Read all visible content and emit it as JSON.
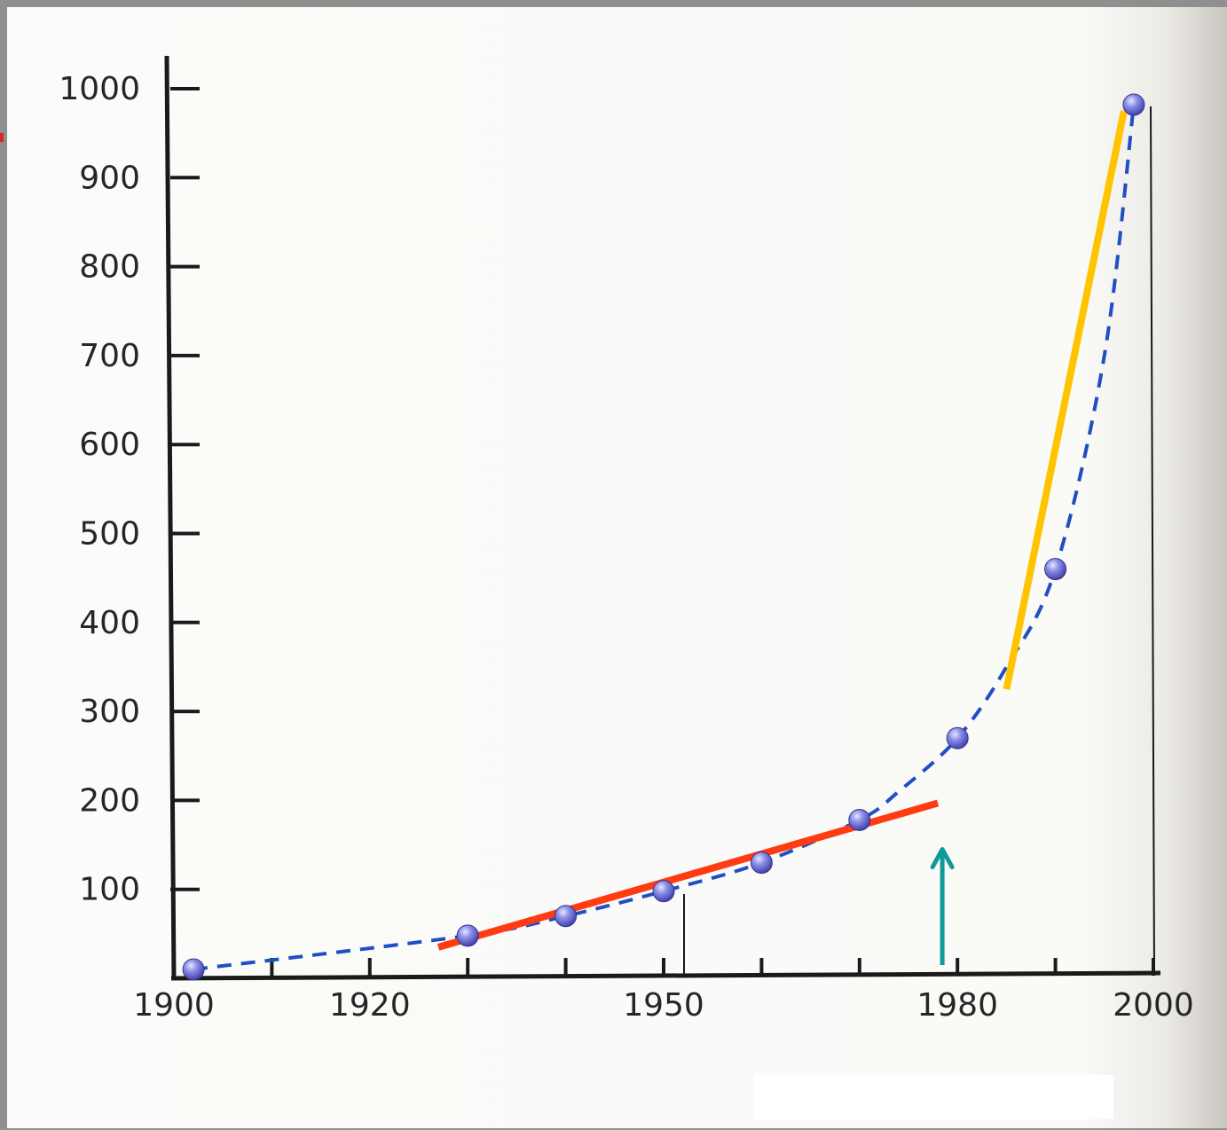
{
  "chart_data": {
    "type": "scatter",
    "title": "",
    "xlabel": "",
    "ylabel": "",
    "xlim": [
      1900,
      2000
    ],
    "ylim": [
      0,
      1000
    ],
    "x_ticks": [
      1900,
      1910,
      1920,
      1930,
      1940,
      1950,
      1960,
      1970,
      1980,
      1990,
      2000
    ],
    "x_tick_labels": [
      "1900",
      "1920",
      "1950",
      "1980",
      "2000"
    ],
    "x_tick_label_values": [
      1900,
      1920,
      1950,
      1980,
      2000
    ],
    "y_ticks": [
      100,
      200,
      300,
      400,
      500,
      600,
      700,
      800,
      900,
      1000
    ],
    "y_tick_labels": [
      "100",
      "200",
      "300",
      "400",
      "500",
      "600",
      "700",
      "800",
      "900",
      "1000"
    ],
    "grid": false,
    "series": [
      {
        "type": "scatter",
        "color": "#6b6fd6",
        "x": [
          1902,
          1930,
          1940,
          1950,
          1960,
          1970,
          1980,
          1990,
          1998
        ],
        "y": [
          10,
          48,
          70,
          98,
          130,
          178,
          270,
          460,
          982
        ]
      },
      {
        "type": "dashed-curve",
        "color": "#1f4fc4",
        "x": [
          1902,
          1930,
          1940,
          1950,
          1960,
          1970,
          1974,
          1980,
          1985,
          1990,
          1995,
          1998
        ],
        "y": [
          10,
          48,
          70,
          98,
          130,
          178,
          210,
          270,
          350,
          460,
          700,
          982
        ]
      },
      {
        "type": "trend-line",
        "color": "#ff3b12",
        "x": [
          1927,
          1978
        ],
        "y": [
          35,
          197
        ]
      },
      {
        "type": "trend-line",
        "color": "#ffc400",
        "x": [
          1985,
          1997
        ],
        "y": [
          325,
          975
        ]
      }
    ],
    "annotations": [
      {
        "type": "arrow",
        "color": "#0e9a96",
        "x": 1978,
        "y_from": 15,
        "y_to": 145
      }
    ]
  }
}
